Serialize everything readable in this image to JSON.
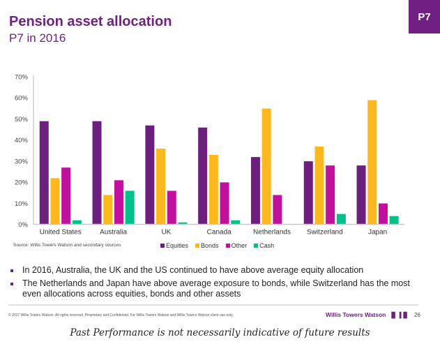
{
  "header": {
    "title": "Pension asset allocation",
    "subtitle": "P7 in 2016",
    "tag": "P7"
  },
  "colors": {
    "brand": "#702082",
    "equities": "#6d1f7e",
    "bonds": "#fdb81e",
    "other": "#c0109c",
    "cash": "#00c18a"
  },
  "chart_data": {
    "type": "bar",
    "title": "",
    "xlabel": "",
    "ylabel": "",
    "ylim": [
      0,
      70
    ],
    "y_ticks": [
      "0%",
      "10%",
      "20%",
      "30%",
      "40%",
      "50%",
      "60%",
      "70%"
    ],
    "grid": false,
    "legend_position": "bottom",
    "categories": [
      "United States",
      "Australia",
      "UK",
      "Canada",
      "Netherlands",
      "Switzerland",
      "Japan"
    ],
    "series": [
      {
        "name": "Equities",
        "color": "#6d1f7e",
        "values": [
          49,
          49,
          47,
          46,
          32,
          30,
          28
        ]
      },
      {
        "name": "Bonds",
        "color": "#fdb81e",
        "values": [
          22,
          14,
          36,
          33,
          55,
          37,
          59
        ]
      },
      {
        "name": "Other",
        "color": "#c0109c",
        "values": [
          27,
          21,
          16,
          20,
          14,
          28,
          10
        ]
      },
      {
        "name": "Cash",
        "color": "#00c18a",
        "values": [
          2,
          16,
          1,
          2,
          0,
          5,
          4
        ]
      }
    ]
  },
  "source": "Source: Willis Towers Watson and secondary sources",
  "bullets": [
    "In 2016, Australia, the UK and the US continued to have above average equity allocation",
    "The Netherlands and Japan have above average exposure to bonds, while Switzerland has the most even allocations across equities, bonds and other assets"
  ],
  "footer": {
    "legal": "© 2017 Willis Towers Watson. All rights reserved. Proprietary and Confidential. For Willis Towers Watson and Willis Towers Watson client use only.",
    "brand": "Willis Towers Watson",
    "brand_mark": "▐▌▐▐▌",
    "page_number": "26"
  },
  "disclaimer": "Past Performance is not necessarily indicative of future results"
}
